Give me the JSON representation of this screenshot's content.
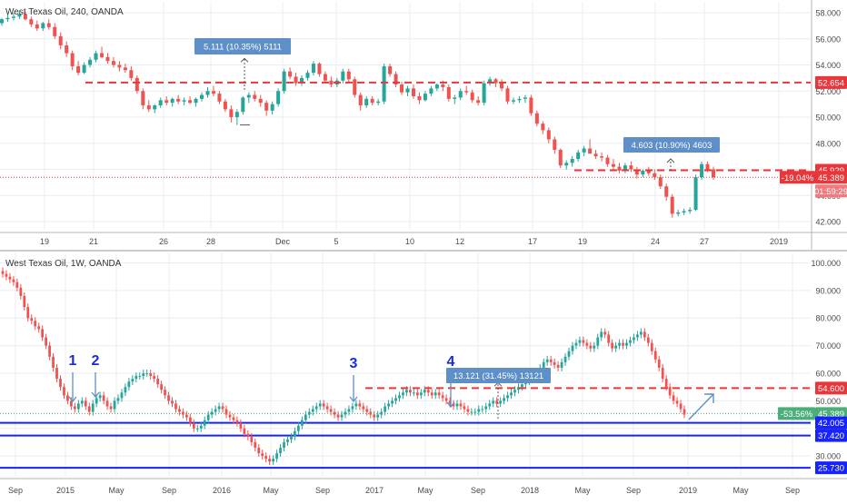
{
  "colors": {
    "up": "#26a69a",
    "down": "#ef5350",
    "red_line": "#e8363a",
    "blue_line": "#1723ff",
    "green_badge": "#4caf7a",
    "measure_badge": "#5f8fc9",
    "label_blue": "#1a2adf",
    "grid": "#e8edf3",
    "axis_text": "#4a4a4a"
  },
  "chart_data": [
    {
      "type": "candlestick",
      "title": "West Texas Oil, 240, OANDA",
      "y_ticks": [
        42.0,
        44.0,
        46.0,
        48.0,
        50.0,
        52.0,
        54.0,
        56.0,
        58.0
      ],
      "ylim": [
        41.4,
        58.8
      ],
      "x_labels": [
        "19",
        "21",
        "26",
        "28",
        "Dec",
        "5",
        "10",
        "12",
        "17",
        "19",
        "24",
        "27",
        "2019"
      ],
      "candles": [
        [
          57.2,
          57.6,
          57.0,
          57.5
        ],
        [
          57.5,
          57.9,
          57.3,
          57.6
        ],
        [
          57.6,
          58.0,
          57.4,
          57.7
        ],
        [
          57.7,
          58.1,
          57.5,
          57.9
        ],
        [
          57.9,
          58.1,
          57.4,
          57.5
        ],
        [
          57.5,
          57.7,
          56.9,
          57.1
        ],
        [
          57.1,
          57.4,
          56.6,
          56.8
        ],
        [
          56.8,
          57.3,
          56.6,
          57.2
        ],
        [
          57.2,
          57.5,
          56.7,
          56.9
        ],
        [
          56.9,
          57.2,
          56.0,
          56.2
        ],
        [
          56.2,
          56.5,
          55.2,
          55.5
        ],
        [
          55.5,
          55.8,
          54.6,
          54.9
        ],
        [
          54.9,
          55.1,
          53.6,
          53.9
        ],
        [
          53.9,
          54.3,
          53.2,
          53.4
        ],
        [
          53.4,
          54.2,
          53.3,
          54.0
        ],
        [
          54.0,
          54.6,
          53.8,
          54.4
        ],
        [
          54.4,
          55.1,
          54.2,
          54.9
        ],
        [
          54.9,
          55.4,
          54.5,
          54.6
        ],
        [
          54.6,
          54.9,
          54.1,
          54.3
        ],
        [
          54.3,
          54.6,
          53.8,
          54.0
        ],
        [
          54.0,
          54.3,
          53.5,
          53.8
        ],
        [
          53.8,
          54.1,
          53.4,
          53.6
        ],
        [
          53.6,
          53.9,
          52.8,
          53.0
        ],
        [
          53.0,
          53.2,
          51.8,
          52.0
        ],
        [
          52.0,
          52.2,
          50.6,
          50.9
        ],
        [
          50.9,
          51.3,
          50.4,
          50.6
        ],
        [
          50.6,
          51.0,
          50.3,
          50.9
        ],
        [
          50.9,
          51.5,
          50.7,
          51.3
        ],
        [
          51.3,
          51.6,
          50.9,
          51.1
        ],
        [
          51.1,
          51.5,
          50.8,
          51.4
        ],
        [
          51.4,
          51.7,
          51.0,
          51.2
        ],
        [
          51.2,
          51.5,
          50.9,
          51.3
        ],
        [
          51.3,
          51.6,
          51.0,
          51.1
        ],
        [
          51.1,
          51.5,
          50.8,
          51.4
        ],
        [
          51.4,
          51.9,
          51.2,
          51.7
        ],
        [
          51.7,
          52.3,
          51.5,
          52.0
        ],
        [
          52.0,
          52.4,
          51.6,
          51.8
        ],
        [
          51.8,
          52.0,
          51.0,
          51.2
        ],
        [
          51.2,
          51.4,
          50.4,
          50.6
        ],
        [
          50.6,
          50.9,
          49.6,
          50.0
        ],
        [
          50.0,
          50.6,
          49.4,
          50.4
        ],
        [
          50.4,
          51.6,
          50.2,
          51.5
        ],
        [
          51.5,
          51.9,
          51.1,
          51.7
        ],
        [
          51.7,
          52.0,
          51.2,
          51.4
        ],
        [
          51.4,
          51.7,
          50.8,
          51.1
        ],
        [
          51.1,
          51.3,
          50.1,
          50.5
        ],
        [
          50.5,
          51.2,
          50.2,
          51.0
        ],
        [
          51.0,
          52.2,
          50.8,
          52.0
        ],
        [
          52.0,
          53.7,
          51.8,
          53.5
        ],
        [
          53.5,
          53.8,
          52.9,
          53.1
        ],
        [
          53.1,
          53.4,
          52.4,
          52.6
        ],
        [
          52.6,
          53.2,
          52.4,
          53.0
        ],
        [
          53.0,
          53.6,
          52.8,
          53.4
        ],
        [
          53.4,
          54.3,
          53.2,
          54.1
        ],
        [
          54.1,
          54.2,
          53.1,
          53.3
        ],
        [
          53.3,
          53.5,
          52.6,
          52.8
        ],
        [
          52.8,
          53.1,
          52.3,
          52.5
        ],
        [
          52.5,
          53.0,
          52.3,
          52.8
        ],
        [
          52.8,
          53.7,
          52.6,
          53.5
        ],
        [
          53.5,
          53.7,
          52.7,
          52.9
        ],
        [
          52.9,
          53.1,
          51.5,
          51.7
        ],
        [
          51.7,
          51.9,
          50.5,
          50.9
        ],
        [
          50.9,
          51.6,
          50.7,
          51.4
        ],
        [
          51.4,
          51.6,
          50.9,
          51.1
        ],
        [
          51.1,
          51.4,
          50.9,
          51.2
        ],
        [
          51.2,
          54.1,
          51.0,
          53.9
        ],
        [
          53.9,
          54.1,
          53.1,
          53.3
        ],
        [
          53.3,
          53.5,
          52.3,
          52.5
        ],
        [
          52.5,
          52.7,
          51.7,
          51.9
        ],
        [
          51.9,
          52.4,
          51.6,
          52.2
        ],
        [
          52.2,
          52.5,
          51.4,
          51.6
        ],
        [
          51.6,
          51.9,
          51.0,
          51.3
        ],
        [
          51.3,
          52.0,
          51.2,
          51.8
        ],
        [
          51.8,
          52.4,
          51.6,
          52.2
        ],
        [
          52.2,
          52.6,
          52.0,
          52.5
        ],
        [
          52.5,
          52.8,
          52.0,
          52.3
        ],
        [
          52.3,
          52.5,
          51.2,
          51.4
        ],
        [
          51.4,
          51.7,
          51.0,
          51.5
        ],
        [
          51.5,
          52.2,
          51.3,
          52.0
        ],
        [
          52.0,
          52.4,
          51.7,
          51.9
        ],
        [
          51.9,
          52.1,
          51.1,
          51.3
        ],
        [
          51.3,
          51.6,
          50.9,
          51.1
        ],
        [
          51.1,
          52.8,
          50.9,
          52.6
        ],
        [
          52.6,
          53.1,
          52.4,
          52.9
        ],
        [
          52.9,
          53.0,
          52.3,
          52.6
        ],
        [
          52.6,
          52.9,
          52.0,
          52.2
        ],
        [
          52.2,
          52.4,
          51.0,
          51.2
        ],
        [
          51.2,
          51.5,
          51.0,
          51.3
        ],
        [
          51.3,
          51.6,
          51.1,
          51.4
        ],
        [
          51.4,
          51.7,
          51.1,
          51.5
        ],
        [
          51.5,
          51.7,
          50.1,
          50.3
        ],
        [
          50.3,
          50.5,
          49.3,
          49.5
        ],
        [
          49.5,
          49.7,
          48.7,
          49.0
        ],
        [
          49.0,
          49.2,
          48.0,
          48.3
        ],
        [
          48.3,
          48.5,
          47.2,
          47.5
        ],
        [
          47.5,
          47.6,
          46.1,
          46.3
        ],
        [
          46.3,
          46.7,
          46.0,
          46.5
        ],
        [
          46.5,
          47.0,
          46.2,
          46.8
        ],
        [
          46.8,
          47.5,
          46.6,
          47.3
        ],
        [
          47.3,
          47.8,
          47.0,
          47.6
        ],
        [
          47.6,
          48.3,
          47.3,
          47.2
        ],
        [
          47.2,
          47.5,
          46.8,
          47.0
        ],
        [
          47.0,
          47.3,
          46.6,
          46.9
        ],
        [
          46.9,
          47.1,
          46.2,
          46.4
        ],
        [
          46.4,
          46.8,
          46.0,
          46.2
        ],
        [
          46.2,
          46.5,
          45.7,
          45.9
        ],
        [
          45.9,
          46.5,
          45.7,
          46.3
        ],
        [
          46.3,
          46.6,
          45.8,
          46.0
        ],
        [
          46.0,
          46.2,
          45.3,
          45.6
        ],
        [
          45.6,
          46.0,
          45.4,
          45.9
        ],
        [
          45.9,
          46.2,
          45.5,
          45.7
        ],
        [
          45.7,
          46.0,
          45.2,
          45.4
        ],
        [
          45.4,
          45.6,
          44.5,
          44.7
        ],
        [
          44.7,
          44.9,
          43.6,
          43.9
        ],
        [
          43.9,
          44.1,
          42.3,
          42.6
        ],
        [
          42.6,
          42.9,
          42.4,
          42.7
        ],
        [
          42.7,
          43.0,
          42.5,
          42.8
        ],
        [
          42.8,
          43.1,
          42.6,
          42.9
        ],
        [
          42.9,
          45.6,
          42.8,
          45.4
        ],
        [
          45.4,
          46.6,
          45.2,
          46.4
        ],
        [
          46.4,
          46.6,
          45.8,
          46.0
        ],
        [
          46.0,
          46.2,
          45.2,
          45.4
        ]
      ],
      "horizontal_lines": [
        {
          "price": 52.654,
          "label": "52.654",
          "style": "dashed-red"
        },
        {
          "price": 45.929,
          "label": "45.929",
          "style": "dashed-red"
        },
        {
          "price": 45.389,
          "label": "45.389",
          "style": "dotted-red"
        }
      ],
      "badges": {
        "change": "-19.04%",
        "price": "45.389",
        "countdown": "01:59:29"
      },
      "annotations": [
        {
          "text": "5.111 (10.35%) 5111"
        },
        {
          "text": "4.603 (10.90%) 4603"
        }
      ]
    },
    {
      "type": "candlestick",
      "title": "West Texas Oil, 1W, OANDA",
      "y_ticks": [
        30.0,
        40.0,
        50.0,
        60.0,
        70.0,
        80.0,
        90.0,
        100.0
      ],
      "ylim": [
        24.0,
        102.0
      ],
      "x_labels": [
        "Sep",
        "2015",
        "May",
        "Sep",
        "2016",
        "May",
        "Sep",
        "2017",
        "May",
        "Sep",
        "2018",
        "May",
        "Sep",
        "2019",
        "May",
        "Sep"
      ],
      "closes": [
        96,
        95,
        94,
        93,
        91,
        88,
        84,
        80,
        79,
        77,
        76,
        73,
        70,
        66,
        62,
        58,
        55,
        52,
        50,
        48,
        47,
        49,
        50,
        48,
        46,
        49,
        51,
        52,
        50,
        48,
        47,
        50,
        51,
        53,
        55,
        57,
        58,
        59,
        59,
        60,
        60,
        59,
        58,
        56,
        54,
        52,
        50,
        49,
        47,
        46,
        45,
        44,
        42,
        40,
        40,
        41,
        43,
        45,
        46,
        47,
        48,
        47,
        45,
        44,
        43,
        42,
        40,
        38,
        37,
        35,
        33,
        31,
        30,
        29,
        28,
        29,
        31,
        33,
        35,
        36,
        37,
        39,
        41,
        43,
        45,
        46,
        47,
        48,
        49,
        48,
        47,
        46,
        45,
        44,
        45,
        46,
        47,
        48,
        49,
        48,
        47,
        46,
        45,
        44,
        45,
        46,
        48,
        49,
        50,
        51,
        52,
        53,
        54,
        53,
        53,
        52,
        53,
        54,
        53,
        52,
        53,
        52,
        51,
        50,
        49,
        48,
        49,
        48,
        47,
        46,
        46,
        46,
        47,
        47,
        48,
        49,
        50,
        49,
        50,
        51,
        52,
        53,
        54,
        55,
        56,
        57,
        58,
        59,
        60,
        62,
        64,
        65,
        64,
        63,
        62,
        64,
        66,
        68,
        70,
        71,
        72,
        71,
        70,
        69,
        70,
        73,
        75,
        74,
        71,
        69,
        70,
        71,
        70,
        71,
        72,
        73,
        74,
        75,
        73,
        71,
        68,
        65,
        62,
        58,
        55,
        52,
        50,
        49,
        47,
        45
      ],
      "horizontal_lines": [
        {
          "price": 54.6,
          "label": "54.600",
          "style": "dashed-red"
        },
        {
          "price": 45.389,
          "label": "45.389",
          "style": "dotted-green"
        },
        {
          "price": 42.005,
          "label": "42.005",
          "style": "solid-blue"
        },
        {
          "price": 37.42,
          "label": "37.420",
          "style": "solid-blue"
        },
        {
          "price": 25.73,
          "label": "25.730",
          "style": "solid-blue"
        }
      ],
      "badges": {
        "change": "-53.56%",
        "price": "45.389"
      },
      "annotations": [
        {
          "text": "13.121 (31.45%) 13121"
        }
      ],
      "wave_labels": [
        "1",
        "2",
        "3",
        "4"
      ]
    }
  ]
}
